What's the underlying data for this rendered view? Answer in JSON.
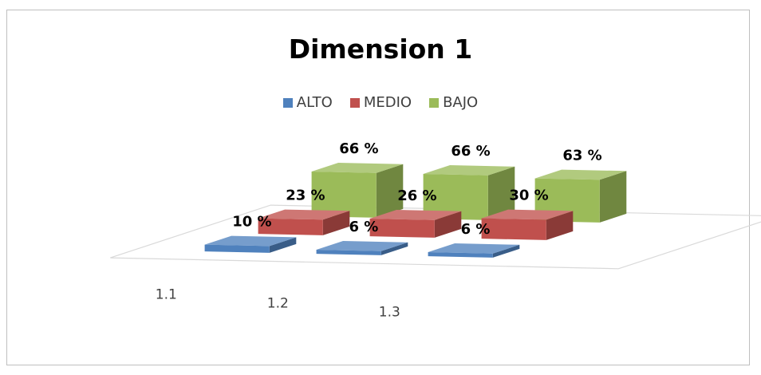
{
  "chart_data": {
    "type": "bar",
    "title": "Dimension 1",
    "categories": [
      "1.1",
      "1.2",
      "1.3"
    ],
    "series": [
      {
        "name": "ALTO",
        "values": [
          10,
          6,
          6
        ],
        "color": "#4f81bd"
      },
      {
        "name": "MEDIO",
        "values": [
          23,
          26,
          30
        ],
        "color": "#c0504d"
      },
      {
        "name": "BAJO",
        "values": [
          66,
          66,
          63
        ],
        "color": "#9bbb59"
      }
    ],
    "data_labels": [
      [
        "10 %",
        "6 %",
        "6 %"
      ],
      [
        "23 %",
        "26 %",
        "30 %"
      ],
      [
        "66 %",
        "66 %",
        "63 %"
      ]
    ],
    "value_format": "percent",
    "legend_position": "top",
    "style": "3d-column",
    "grid": false
  }
}
